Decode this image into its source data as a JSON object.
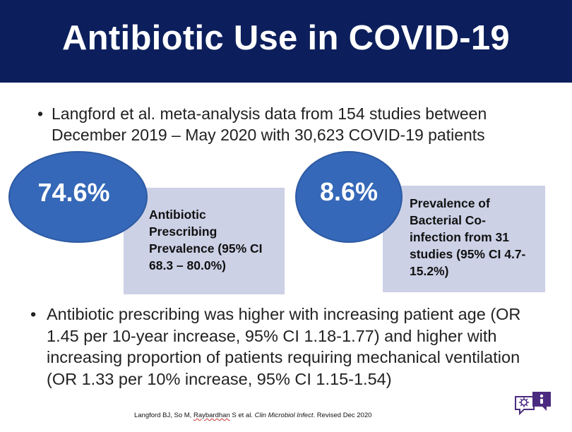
{
  "header": {
    "title": "Antibiotic Use in COVID-19"
  },
  "bullets": {
    "first": {
      "dot": "•",
      "text": "Langford et al. meta-analysis data from 154 studies between December 2019 – May 2020 with 30,623 COVID-19 patients"
    },
    "second": {
      "dot": "•",
      "text": "Antibiotic prescribing was higher with increasing patient age (OR 1.45 per 10-year increase, 95% CI 1.18-1.77) and higher with increasing proportion of patients requiring mechanical ventilation (OR 1.33 per 10% increase, 95% CI 1.15-1.54)"
    }
  },
  "stats": {
    "antibiotic": {
      "value": "74.6%",
      "label_bold": "Antibiotic Prescribing Prevalence",
      "label_ci": " (95% CI 68.3 – 80.0%)"
    },
    "coinfection": {
      "value": "8.6%",
      "label_bold": "Prevalence of Bacterial Co-infection from 31 studies",
      "label_ci": " (95% CI 4.7-15.2%)"
    }
  },
  "footer": {
    "authors_a": "Langford BJ, So M, ",
    "authors_b": "Raybardhan",
    "authors_c": " S et al. ",
    "journal": "Clin Microbiol Infect",
    "revised": ". Revised Dec 2020"
  },
  "colors": {
    "header_bg": "#0c1f5c",
    "circle": "#3568b8",
    "box": "#ccd1e6",
    "logo": "#4a2b80"
  },
  "icons": {
    "logo": "speech-bubble-microbe-icon"
  }
}
